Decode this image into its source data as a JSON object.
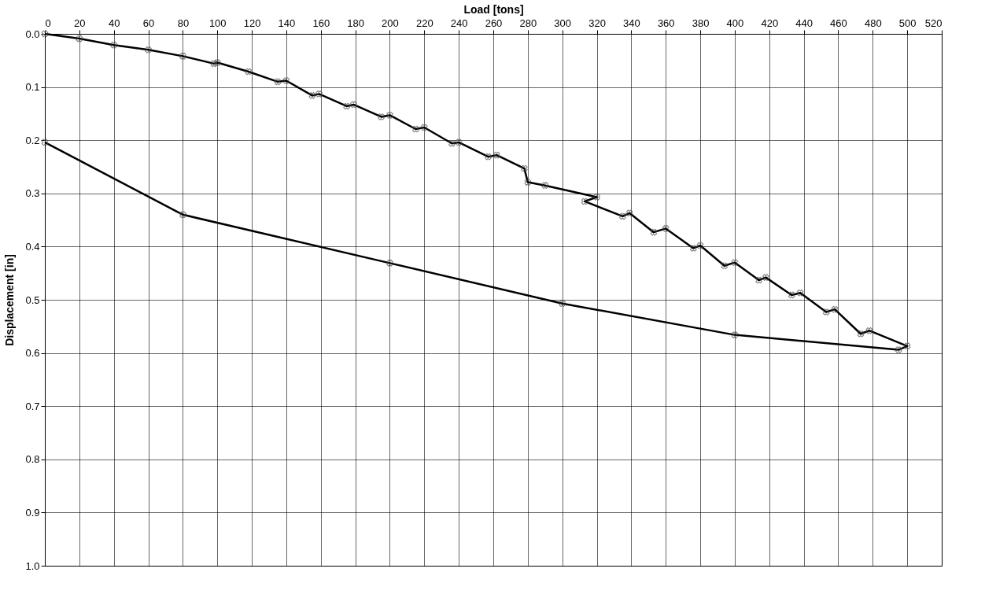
{
  "chart_data": {
    "type": "line",
    "xlabel": "Load [tons]",
    "ylabel": "Displacement [in]",
    "series": [
      {
        "color": "#000000",
        "x": [
          0,
          20,
          40,
          60,
          80,
          98,
          100,
          118,
          135,
          140,
          155,
          159,
          175,
          179,
          195,
          200,
          215,
          220,
          236,
          240,
          257,
          262,
          278,
          280,
          290,
          320,
          313,
          335,
          339,
          353,
          360,
          376,
          380,
          394,
          400,
          414,
          418,
          433,
          438,
          453,
          458,
          473,
          478,
          500,
          495,
          400,
          300,
          200,
          80,
          0
        ],
        "values": [
          0,
          0.009,
          0.021,
          0.03,
          0.042,
          0.056,
          0.054,
          0.071,
          0.09,
          0.088,
          0.116,
          0.113,
          0.136,
          0.133,
          0.156,
          0.153,
          0.179,
          0.176,
          0.206,
          0.204,
          0.231,
          0.228,
          0.253,
          0.279,
          0.285,
          0.307,
          0.315,
          0.343,
          0.337,
          0.373,
          0.366,
          0.403,
          0.398,
          0.436,
          0.43,
          0.463,
          0.458,
          0.491,
          0.487,
          0.523,
          0.518,
          0.564,
          0.558,
          0.587,
          0.594,
          0.566,
          0.507,
          0.431,
          0.34,
          0.204
        ]
      }
    ],
    "xlim": [
      0,
      520
    ],
    "xticks": [
      0,
      20,
      40,
      60,
      80,
      100,
      120,
      140,
      160,
      180,
      200,
      220,
      240,
      260,
      280,
      300,
      320,
      340,
      360,
      380,
      400,
      420,
      440,
      460,
      480,
      500,
      520
    ],
    "ylim": [
      1.0,
      0.0
    ],
    "yticks": [
      {
        "value": 0,
        "label": "0.0"
      },
      0.1,
      0.2,
      0.3,
      0.4,
      0.5,
      0.6,
      0.7,
      0.8,
      0.9,
      {
        "value": 1,
        "label": "1.0"
      }
    ],
    "grid": true,
    "marker": "cross",
    "line_style": "solid"
  }
}
